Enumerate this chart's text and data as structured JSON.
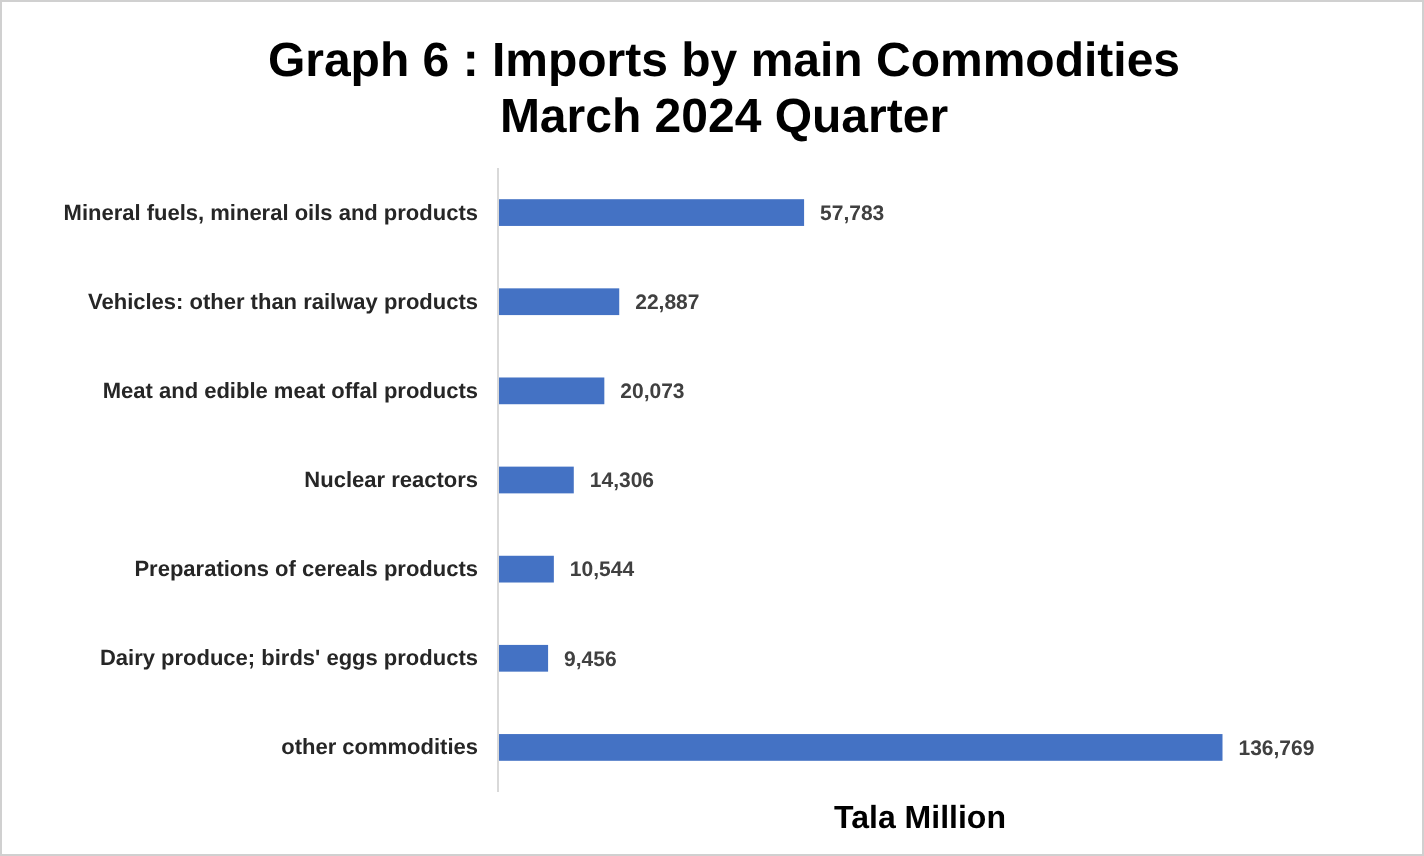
{
  "chart_data": {
    "type": "bar",
    "orientation": "horizontal",
    "title": "Graph 6 : Imports by main Commodities\nMarch 2024 Quarter",
    "xlabel": "Tala Million",
    "categories": [
      "Mineral fuels, mineral oils and products",
      "Vehicles: other than railway products",
      "Meat and edible meat offal products",
      "Nuclear reactors",
      "Preparations of cereals products",
      "Dairy produce; birds' eggs products",
      "other commodities"
    ],
    "values": [
      57783,
      22887,
      20073,
      14306,
      10544,
      9456,
      136769
    ],
    "value_labels": [
      "57,783",
      "22,887",
      "20,073",
      "14,306",
      "10,544",
      "9,456",
      "136,769"
    ],
    "color": "#4472c4"
  }
}
